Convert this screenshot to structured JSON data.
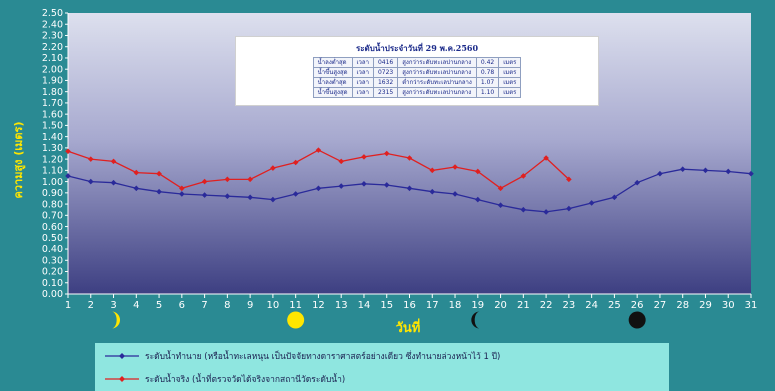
{
  "chart_data": {
    "type": "line",
    "ylabel": "ความสูง (เมตร)",
    "xlabel": "วันที่",
    "ylim": [
      0,
      2.5
    ],
    "ytick_step": 0.1,
    "x": [
      1,
      2,
      3,
      4,
      5,
      6,
      7,
      8,
      9,
      10,
      11,
      12,
      13,
      14,
      15,
      16,
      17,
      18,
      19,
      20,
      21,
      22,
      23,
      24,
      25,
      26,
      27,
      28,
      29,
      30,
      31
    ],
    "grid": false,
    "legend_position": "bottom",
    "series": [
      {
        "name": "ระดับน้ำทำนาย (หรือน้ำทะเลหนุน เป็นปัจจัยทางดาราศาสตร์อย่างเดียว ซึ่งทำนายล่วงหน้าไว้ 1 ปี)",
        "color": "#2a2a9a",
        "marker": "diamond",
        "x": [
          1,
          2,
          3,
          4,
          5,
          6,
          7,
          8,
          9,
          10,
          11,
          12,
          13,
          14,
          15,
          16,
          17,
          18,
          19,
          20,
          21,
          22,
          23,
          24,
          25,
          26,
          27,
          28,
          29,
          30,
          31
        ],
        "values": [
          1.05,
          1.0,
          0.99,
          0.94,
          0.91,
          0.89,
          0.88,
          0.87,
          0.86,
          0.84,
          0.89,
          0.94,
          0.96,
          0.98,
          0.97,
          0.94,
          0.91,
          0.89,
          0.84,
          0.79,
          0.75,
          0.73,
          0.76,
          0.81,
          0.86,
          0.99,
          1.07,
          1.11,
          1.1,
          1.09,
          1.07
        ]
      },
      {
        "name": "ระดับน้ำจริง (น้ำที่ตรวจวัดได้จริงจากสถานีวัดระดับน้ำ)",
        "color": "#e02020",
        "marker": "diamond",
        "x": [
          1,
          2,
          3,
          4,
          5,
          6,
          7,
          8,
          9,
          10,
          11,
          12,
          13,
          14,
          15,
          16,
          17,
          18,
          19,
          20,
          21,
          22,
          23
        ],
        "values": [
          1.27,
          1.2,
          1.18,
          1.08,
          1.07,
          0.94,
          1.0,
          1.02,
          1.02,
          1.12,
          1.17,
          1.28,
          1.18,
          1.22,
          1.25,
          1.21,
          1.1,
          1.13,
          1.09,
          0.94,
          1.05,
          1.21,
          1.02
        ]
      }
    ],
    "moon_phases": [
      {
        "day": 3,
        "phase": "first-quarter",
        "color": "#ffe600"
      },
      {
        "day": 11,
        "phase": "full-moon",
        "color": "#ffe600"
      },
      {
        "day": 19,
        "phase": "last-quarter",
        "color": "#111111"
      },
      {
        "day": 26,
        "phase": "new-moon",
        "color": "#111111"
      }
    ]
  },
  "info_box": {
    "title": "ระดับน้ำประจำวันที่ 29 พ.ค.2560",
    "rows": [
      [
        "น้ำลงต่ำสุด",
        "เวลา",
        "0416",
        "สูงกว่าระดับทะเลปานกลาง",
        "0.42",
        "เมตร"
      ],
      [
        "น้ำขึ้นสูงสุด",
        "เวลา",
        "0723",
        "สูงกว่าระดับทะเลปานกลาง",
        "0.78",
        "เมตร"
      ],
      [
        "น้ำลงต่ำสุด",
        "เวลา",
        "1632",
        "ต่ำกว่าระดับทะเลปานกลาง",
        "1.07",
        "เมตร"
      ],
      [
        "น้ำขึ้นสูงสุด",
        "เวลา",
        "2315",
        "สูงกว่าระดับทะเลปานกลาง",
        "1.10",
        "เมตร"
      ]
    ]
  },
  "legend": {
    "predicted": "ระดับน้ำทำนาย (หรือน้ำทะเลหนุน เป็นปัจจัยทางดาราศาสตร์อย่างเดียว ซึ่งทำนายล่วงหน้าไว้ 1 ปี)",
    "actual": "ระดับน้ำจริง (น้ำที่ตรวจวัดได้จริงจากสถานีวัดระดับน้ำ)"
  },
  "colors": {
    "background": "#2a8a93",
    "plot_top": "#dde0ee",
    "plot_bottom": "#3d3f82",
    "legend_bg": "#8fe6e0",
    "label_yellow": "#ffe600"
  }
}
